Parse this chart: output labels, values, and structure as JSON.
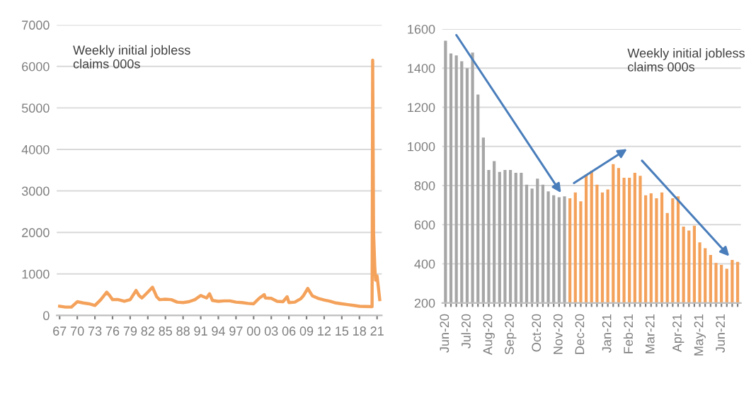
{
  "chart_data": [
    {
      "type": "line",
      "annotations": [
        "Weekly initial jobless\nclaims 000s"
      ],
      "x": [
        1967,
        1968,
        1969,
        1970,
        1971,
        1972,
        1973,
        1974,
        1975,
        1975.5,
        1976,
        1977,
        1978,
        1979,
        1980,
        1980.5,
        1981,
        1982,
        1982.8,
        1983.5,
        1984,
        1985,
        1986,
        1987,
        1988,
        1989,
        1990,
        1991,
        1992,
        1992.5,
        1993,
        1994,
        1995,
        1996,
        1997,
        1998,
        1999,
        2000,
        2001,
        2001.8,
        2002,
        2003,
        2004,
        2005,
        2005.7,
        2006,
        2007,
        2008,
        2008.5,
        2009.2,
        2010,
        2011,
        2012,
        2013,
        2014,
        2015,
        2016,
        2017,
        2018,
        2019,
        2020.15,
        2020.25,
        2020.4,
        2020.6,
        2020.75,
        2021,
        2021.2,
        2021.45
      ],
      "series": [
        {
          "color": "#f4a25b",
          "values": [
            220,
            200,
            200,
            330,
            300,
            280,
            240,
            380,
            560,
            480,
            380,
            380,
            340,
            380,
            600,
            480,
            420,
            560,
            680,
            450,
            380,
            390,
            380,
            320,
            310,
            330,
            380,
            480,
            420,
            520,
            360,
            340,
            350,
            350,
            320,
            310,
            290,
            280,
            420,
            500,
            420,
            410,
            340,
            330,
            450,
            310,
            320,
            400,
            480,
            650,
            470,
            410,
            370,
            340,
            300,
            280,
            260,
            240,
            220,
            215,
            211,
            6150,
            2000,
            1200,
            850,
            950,
            700,
            380
          ]
        }
      ],
      "xlim": [
        1966.5,
        2021.8
      ],
      "ylim": [
        0,
        7000
      ],
      "xticks": [
        {
          "value": 1967,
          "label": "67"
        },
        {
          "value": 1970,
          "label": "70"
        },
        {
          "value": 1973,
          "label": "73"
        },
        {
          "value": 1976,
          "label": "76"
        },
        {
          "value": 1979,
          "label": "79"
        },
        {
          "value": 1982,
          "label": "82"
        },
        {
          "value": 1985,
          "label": "85"
        },
        {
          "value": 1988,
          "label": "88"
        },
        {
          "value": 1991,
          "label": "91"
        },
        {
          "value": 1994,
          "label": "94"
        },
        {
          "value": 1997,
          "label": "97"
        },
        {
          "value": 2000,
          "label": "00"
        },
        {
          "value": 2003,
          "label": "03"
        },
        {
          "value": 2006,
          "label": "06"
        },
        {
          "value": 2009,
          "label": "09"
        },
        {
          "value": 2012,
          "label": "12"
        },
        {
          "value": 2015,
          "label": "15"
        },
        {
          "value": 2018,
          "label": "18"
        },
        {
          "value": 2021,
          "label": "21"
        }
      ],
      "yticks": [
        0,
        1000,
        2000,
        3000,
        4000,
        5000,
        6000,
        7000
      ],
      "grid": "y",
      "legend": false
    },
    {
      "type": "bar",
      "annotations": [
        "Weekly initial jobless\nclaims 000s"
      ],
      "categories": [
        "Jun-20",
        null,
        null,
        null,
        "Jul-20",
        null,
        null,
        null,
        "Aug-20",
        null,
        null,
        null,
        "Sep-20",
        null,
        null,
        null,
        null,
        "Oct-20",
        null,
        null,
        null,
        "Nov-20",
        null,
        null,
        null,
        "Dec-20",
        null,
        null,
        null,
        null,
        "Jan-21",
        null,
        null,
        null,
        "Feb-21",
        null,
        null,
        null,
        "Mar-21",
        null,
        null,
        null,
        null,
        "Apr-21",
        null,
        null,
        null,
        "May-21",
        null,
        null,
        null,
        "Jun-21",
        null,
        null,
        null
      ],
      "values": [
        1540,
        1475,
        1465,
        1435,
        1400,
        1480,
        1265,
        1045,
        880,
        925,
        870,
        880,
        880,
        865,
        865,
        805,
        785,
        835,
        805,
        770,
        750,
        740,
        745,
        735,
        765,
        720,
        855,
        875,
        805,
        765,
        780,
        910,
        890,
        840,
        840,
        865,
        850,
        750,
        760,
        735,
        765,
        660,
        735,
        745,
        590,
        570,
        595,
        510,
        480,
        445,
        405,
        395,
        375,
        420,
        410
      ],
      "colors": [
        "#a6a6a6",
        "#a6a6a6",
        "#a6a6a6",
        "#a6a6a6",
        "#a6a6a6",
        "#a6a6a6",
        "#a6a6a6",
        "#a6a6a6",
        "#a6a6a6",
        "#a6a6a6",
        "#a6a6a6",
        "#a6a6a6",
        "#a6a6a6",
        "#a6a6a6",
        "#a6a6a6",
        "#a6a6a6",
        "#a6a6a6",
        "#a6a6a6",
        "#a6a6a6",
        "#a6a6a6",
        "#a6a6a6",
        "#a6a6a6",
        "#a6a6a6",
        "#f4a25b",
        "#f4a25b",
        "#f4a25b",
        "#f4a25b",
        "#f4a25b",
        "#f4a25b",
        "#f4a25b",
        "#f4a25b",
        "#f4a25b",
        "#f4a25b",
        "#f4a25b",
        "#f4a25b",
        "#f4a25b",
        "#f4a25b",
        "#f4a25b",
        "#f4a25b",
        "#f4a25b",
        "#f4a25b",
        "#f4a25b",
        "#f4a25b",
        "#f4a25b",
        "#f4a25b",
        "#f4a25b",
        "#f4a25b",
        "#f4a25b",
        "#f4a25b",
        "#f4a25b",
        "#f4a25b",
        "#f4a25b",
        "#f4a25b",
        "#f4a25b",
        "#f4a25b"
      ],
      "ylim": [
        200,
        1600
      ],
      "yticks": [
        200,
        400,
        600,
        800,
        1000,
        1200,
        1400,
        1600
      ],
      "grid": "y",
      "legend": false
    }
  ]
}
